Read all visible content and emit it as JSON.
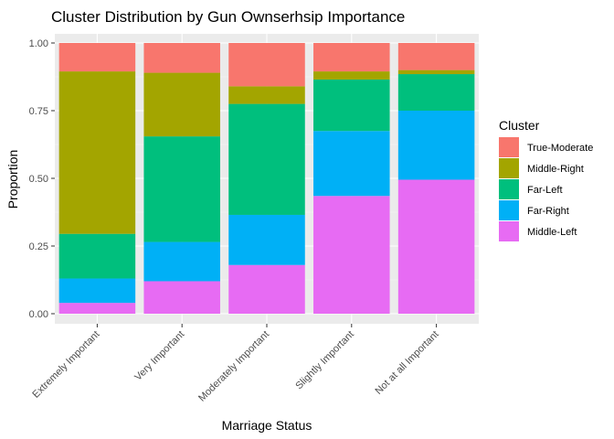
{
  "chart_data": {
    "type": "bar",
    "stacked": true,
    "title": "Cluster Distribution by Gun Ownserhsip Importance",
    "xlabel": "Marriage Status",
    "ylabel": "Proportion",
    "ylim": [
      0,
      1
    ],
    "yticks": [
      "0.00",
      "0.25",
      "0.50",
      "0.75",
      "1.00"
    ],
    "ytick_values": [
      0,
      0.25,
      0.5,
      0.75,
      1.0
    ],
    "grid": true,
    "legend_position": "right",
    "legend_title": "Cluster",
    "categories": [
      "Extremely Important",
      "Very Important",
      "Moderately Important",
      "Slightly Important",
      "Not at all Important"
    ],
    "series": [
      {
        "name": "Middle-Left",
        "color": "#E76BF3",
        "values": [
          0.04,
          0.12,
          0.18,
          0.435,
          0.495
        ]
      },
      {
        "name": "Far-Right",
        "color": "#00B0F6",
        "values": [
          0.09,
          0.145,
          0.185,
          0.24,
          0.255
        ]
      },
      {
        "name": "Far-Left",
        "color": "#00BF7D",
        "values": [
          0.165,
          0.39,
          0.41,
          0.19,
          0.135
        ]
      },
      {
        "name": "Middle-Right",
        "color": "#A3A500",
        "values": [
          0.6,
          0.235,
          0.065,
          0.03,
          0.015
        ]
      },
      {
        "name": "True-Moderate",
        "color": "#F8766D",
        "values": [
          0.105,
          0.11,
          0.16,
          0.105,
          0.1
        ]
      }
    ],
    "legend_order": [
      "True-Moderate",
      "Middle-Right",
      "Far-Left",
      "Far-Right",
      "Middle-Left"
    ]
  }
}
